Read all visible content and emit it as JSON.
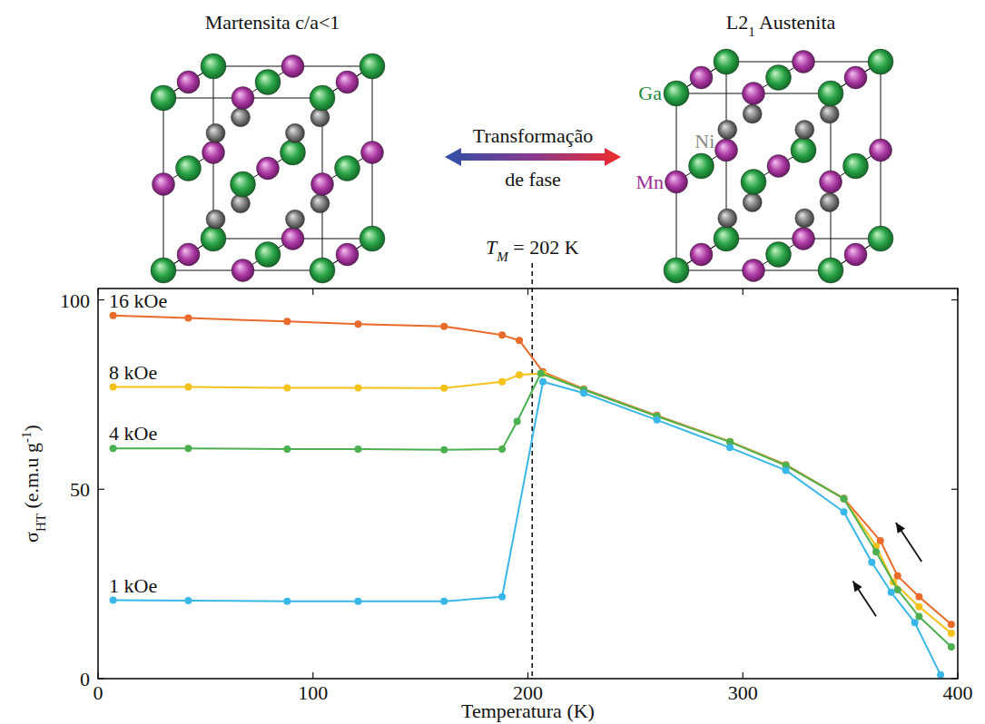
{
  "chart_data": {
    "type": "line",
    "xlabel": "Temperatura (K)",
    "ylabel": [
      "σ",
      "HT",
      " (e.m.u g",
      "-1",
      ")"
    ],
    "xlim": [
      0,
      400
    ],
    "xticks": [
      0,
      100,
      200,
      300,
      400
    ],
    "ylim": [
      0,
      103
    ],
    "yticks": [
      0,
      50,
      100
    ],
    "marker": "circle",
    "series": [
      {
        "name": "16 kOe",
        "color": "#ea6a2a",
        "x": [
          7,
          42,
          88,
          121,
          161,
          188,
          196,
          207,
          226,
          260,
          294,
          320,
          347,
          364,
          372,
          382,
          397
        ],
        "values": [
          95.9,
          95.2,
          94.3,
          93.6,
          93.0,
          90.7,
          89.3,
          81.0,
          76.5,
          69.5,
          62.6,
          56.5,
          47.6,
          36.4,
          27.1,
          21.6,
          14.3
        ]
      },
      {
        "name": "8 kOe",
        "color": "#f5c21b",
        "x": [
          7,
          42,
          88,
          121,
          161,
          188,
          196,
          207,
          226,
          260,
          294,
          320,
          347,
          362,
          370,
          382,
          397
        ],
        "values": [
          77.0,
          77.0,
          76.8,
          76.8,
          76.7,
          78.4,
          80.2,
          80.6,
          76.3,
          69.3,
          62.6,
          56.3,
          47.5,
          35.0,
          25.5,
          19.0,
          12.0
        ]
      },
      {
        "name": "4 kOe",
        "color": "#4caf50",
        "x": [
          7,
          42,
          88,
          121,
          161,
          188,
          195,
          206,
          226,
          260,
          294,
          320,
          347,
          362,
          372,
          382,
          397
        ],
        "values": [
          60.8,
          60.8,
          60.6,
          60.6,
          60.4,
          60.6,
          67.9,
          80.6,
          76.3,
          69.3,
          62.5,
          56.3,
          47.5,
          33.5,
          23.5,
          16.4,
          8.4
        ]
      },
      {
        "name": "1 kOe",
        "color": "#39b7e8",
        "x": [
          7,
          42,
          88,
          121,
          161,
          188,
          207,
          226,
          260,
          294,
          320,
          347,
          360,
          369,
          380,
          392
        ],
        "values": [
          20.7,
          20.6,
          20.4,
          20.4,
          20.4,
          21.6,
          78.4,
          75.4,
          68.3,
          61.0,
          55.0,
          44.0,
          30.7,
          22.8,
          14.8,
          1.0
        ]
      }
    ],
    "annotations": [
      {
        "x": 202,
        "symbol": "T",
        "subscript": "M",
        "equals": " = ",
        "unit": " K",
        "line_style": "dashed"
      }
    ]
  },
  "diagram": {
    "left_title": "Martensita c/a<1",
    "right_title": [
      "L2",
      "1",
      " Austenita"
    ],
    "arrow_label": [
      "Transformação",
      "de fase"
    ],
    "atoms": [
      "Ga",
      "Ni",
      "Mn"
    ]
  }
}
